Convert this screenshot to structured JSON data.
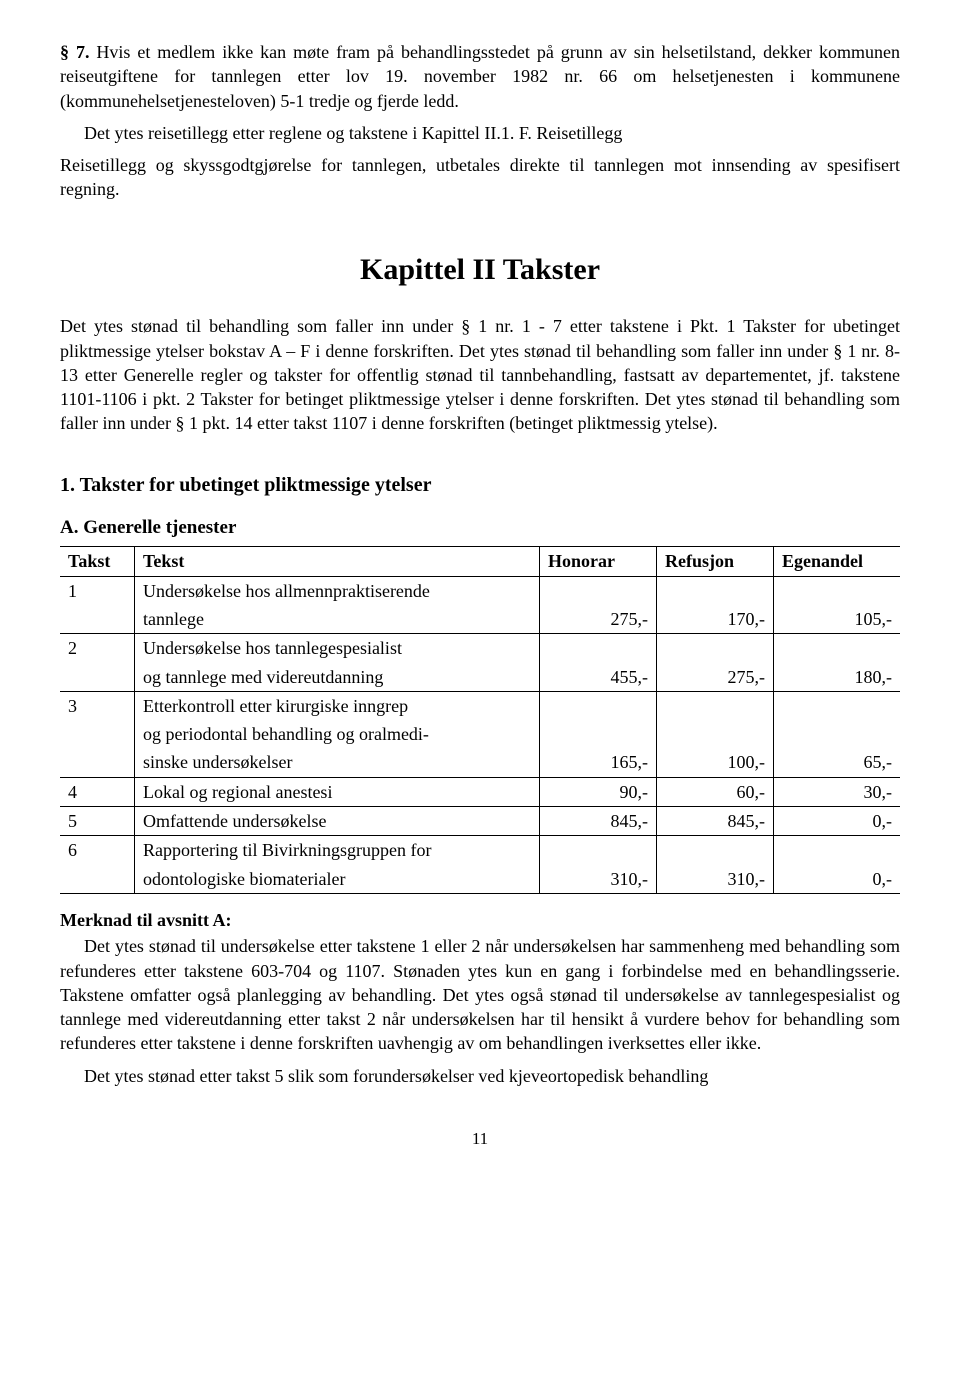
{
  "para1_lead": "§ 7.",
  "para1": "Hvis et medlem ikke kan møte fram på behandlingsstedet på grunn av sin helsetilstand, dekker kommunen reiseutgiftene for tannlegen etter lov 19. november 1982 nr. 66 om helsetjenesten i kommunene (kommunehelsetjenesteloven) 5-1 tredje og fjerde ledd.",
  "para2": "Det ytes reisetillegg etter reglene og takstene i Kapittel II.1. F. Reisetillegg",
  "para3": "Reisetillegg og skyssgodtgjørelse for tannlegen, utbetales direkte til tannlegen mot innsending av spesifisert regning.",
  "chapter_title": "Kapittel II Takster",
  "para4": "Det ytes stønad til behandling som faller inn under § 1 nr. 1 - 7 etter takstene i Pkt. 1 Takster for ubetinget pliktmessige ytelser bokstav A – F i denne forskriften. Det ytes stønad til behandling som faller inn under § 1 nr. 8-13 etter Generelle regler og takster for offentlig stønad til tannbehandling, fastsatt av departementet, jf. takstene 1101-1106 i pkt. 2 Takster for betinget pliktmessige ytelser i denne forskriften. Det ytes stønad til behandling som faller inn under § 1 pkt. 14 etter takst 1107 i denne forskriften (betinget pliktmessig ytelse).",
  "subheading1": "1. Takster for ubetinget pliktmessige ytelser",
  "subheadingA": "A. Generelle tjenester",
  "table": {
    "headers": [
      "Takst",
      "Tekst",
      "Honorar",
      "Refusjon",
      "Egenandel"
    ],
    "rows": [
      {
        "id": "1",
        "lines": [
          "Undersøkelse hos allmennpraktiserende",
          "tannlege"
        ],
        "honorar": "275,-",
        "refusjon": "170,-",
        "egenandel": "105,-"
      },
      {
        "id": "2",
        "lines": [
          "Undersøkelse hos tannlegespesialist",
          "og tannlege med videreutdanning"
        ],
        "honorar": "455,-",
        "refusjon": "275,-",
        "egenandel": "180,-"
      },
      {
        "id": "3",
        "lines": [
          "Etterkontroll etter kirurgiske inngrep",
          "og periodontal behandling og oralmedi-",
          "sinske undersøkelser"
        ],
        "honorar": "165,-",
        "refusjon": "100,-",
        "egenandel": "65,-"
      },
      {
        "id": "4",
        "lines": [
          "Lokal og regional anestesi"
        ],
        "honorar": "90,-",
        "refusjon": "60,-",
        "egenandel": "30,-"
      },
      {
        "id": "5",
        "lines": [
          "Omfattende undersøkelse"
        ],
        "honorar": "845,-",
        "refusjon": "845,-",
        "egenandel": "0,-"
      },
      {
        "id": "6",
        "lines": [
          "Rapportering til Bivirkningsgruppen for",
          "odontologiske biomaterialer"
        ],
        "honorar": "310,-",
        "refusjon": "310,-",
        "egenandel": "0,-"
      }
    ]
  },
  "note_heading": "Merknad til avsnitt A:",
  "note_p1": "Det ytes stønad til undersøkelse etter takstene 1 eller 2 når undersøkelsen har sammenheng med behandling som refunderes etter takstene 603-704 og 1107. Stønaden ytes kun en gang i forbindelse med en behandlingsserie. Takstene omfatter også planlegging av behandling. Det ytes også stønad til undersøkelse av tannlegespesialist og tannlege med videreutdanning etter takst 2 når undersøkelsen har til hensikt å vurdere behov for behandling som refunderes etter takstene i denne forskriften uavhengig av om behandlingen iverksettes eller ikke.",
  "note_p2": "Det ytes stønad etter takst 5 slik som forundersøkelser ved kjeveortopedisk behandling",
  "page_number": "11"
}
